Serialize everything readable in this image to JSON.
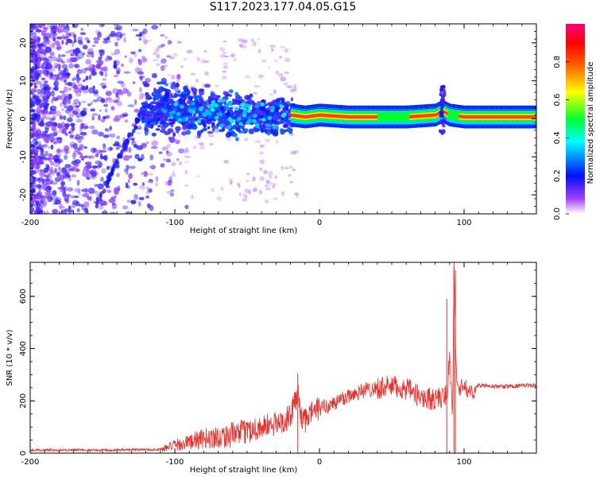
{
  "title": "S117.2023.177.04.05.G15",
  "chart_data": [
    {
      "type": "heatmap",
      "title": "",
      "xlabel": "Height of straight line (km)",
      "ylabel": "Frequency (Hz)",
      "xlim": [
        -200,
        150
      ],
      "ylim": [
        -25,
        25
      ],
      "xticks": [
        -200,
        -100,
        0,
        100
      ],
      "yticks": [
        -20,
        -10,
        0,
        10,
        20
      ],
      "colorbar": {
        "label": "Normalized spectral amplitude",
        "range": [
          0.0,
          1.0
        ],
        "ticks": [
          0.0,
          0.2,
          0.4,
          0.6,
          0.8
        ],
        "colors": [
          "#ffffff",
          "#7a00ff",
          "#0000ff",
          "#00ffff",
          "#00ff00",
          "#ffff00",
          "#ff8000",
          "#ff0000",
          "#ff00a0"
        ]
      },
      "ridge": {
        "description_points_x": [
          -110,
          -90,
          -70,
          -50,
          -30,
          -20,
          -10,
          0,
          20,
          40,
          60,
          80,
          85,
          90,
          100,
          120,
          150
        ],
        "frequency": [
          2.5,
          2.5,
          1.5,
          1.0,
          0.5,
          1.0,
          0.5,
          1.0,
          0.5,
          0.5,
          0.5,
          1.0,
          2.0,
          1.0,
          0.5,
          0.5,
          0.5
        ]
      },
      "grid": false
    },
    {
      "type": "line",
      "title": "",
      "xlabel": "Height of straight line (km)",
      "ylabel": "SNR (10 * v/v)",
      "xlim": [
        -200,
        150
      ],
      "ylim": [
        0,
        730
      ],
      "xticks": [
        -200,
        -100,
        0,
        100
      ],
      "yticks": [
        0,
        200,
        400,
        600
      ],
      "series_color": "#e8302c",
      "x": [
        -200,
        -150,
        -110,
        -100,
        -80,
        -60,
        -40,
        -30,
        -20,
        -15,
        -12,
        -10,
        -5,
        0,
        10,
        20,
        30,
        40,
        50,
        60,
        70,
        80,
        88,
        90,
        92,
        93,
        95,
        100,
        105,
        110,
        120,
        130,
        140,
        150
      ],
      "y": [
        12,
        12,
        14,
        30,
        55,
        70,
        100,
        110,
        140,
        230,
        130,
        120,
        160,
        170,
        190,
        220,
        240,
        250,
        255,
        245,
        215,
        205,
        220,
        380,
        140,
        700,
        250,
        255,
        230,
        260,
        255,
        255,
        258,
        260
      ],
      "grid": false
    }
  ]
}
